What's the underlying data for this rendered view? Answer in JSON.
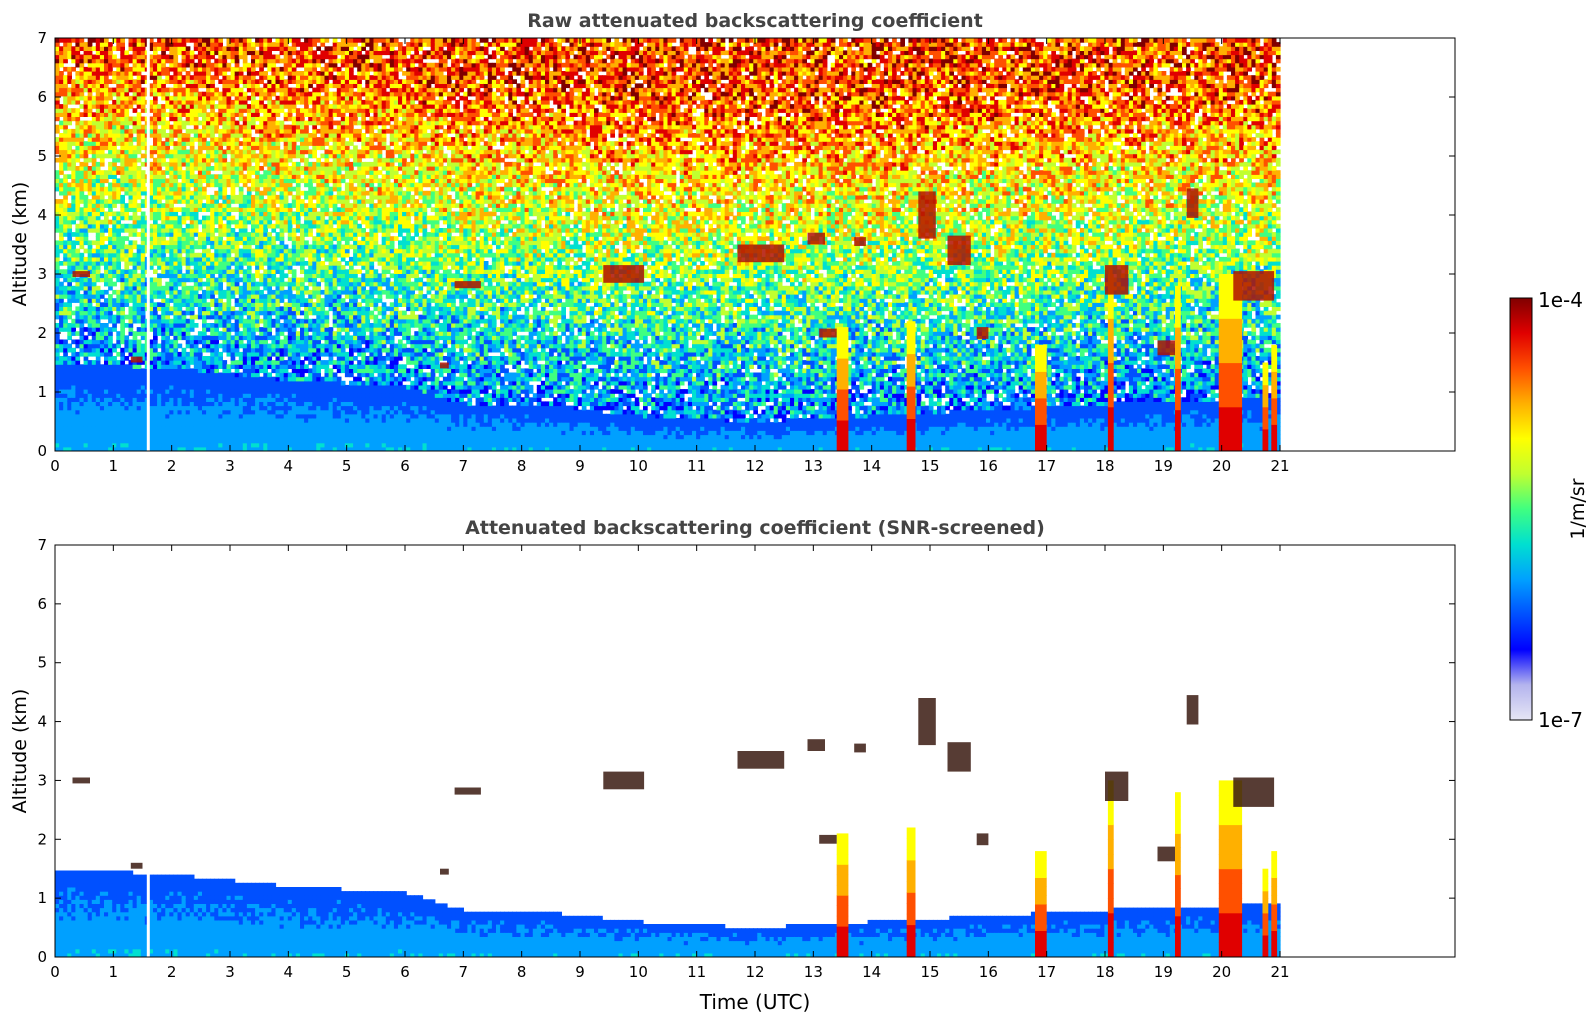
{
  "chart_data": [
    {
      "type": "heatmap",
      "title": "Raw attenuated backscattering coefficient",
      "xlabel": "",
      "ylabel": "Altitude (km)",
      "xlim": [
        0,
        24
      ],
      "ylim": [
        0,
        7
      ],
      "x_ticks": [
        "0",
        "1",
        "2",
        "3",
        "4",
        "5",
        "6",
        "7",
        "8",
        "9",
        "10",
        "11",
        "12",
        "13",
        "14",
        "15",
        "16",
        "17",
        "18",
        "19",
        "20",
        "21"
      ],
      "y_ticks": [
        "0",
        "1",
        "2",
        "3",
        "4",
        "5",
        "6",
        "7"
      ],
      "data_end_time": 21,
      "gap_time": 1.6,
      "screened": false,
      "grid": false,
      "boundary_layer_top_km": [
        [
          0,
          1.5
        ],
        [
          2,
          1.4
        ],
        [
          4,
          1.2
        ],
        [
          6,
          1.1
        ],
        [
          7,
          0.8
        ],
        [
          8,
          0.8
        ],
        [
          10,
          0.6
        ],
        [
          12,
          0.5
        ],
        [
          14,
          0.6
        ],
        [
          16,
          0.7
        ],
        [
          18,
          0.8
        ],
        [
          21,
          0.9
        ]
      ],
      "precipitation_shafts": [
        {
          "t0": 13.4,
          "t1": 13.6,
          "top_km": 2.1
        },
        {
          "t0": 14.6,
          "t1": 14.75,
          "top_km": 2.2
        },
        {
          "t0": 16.8,
          "t1": 17.0,
          "top_km": 1.8
        },
        {
          "t0": 18.05,
          "t1": 18.15,
          "top_km": 3.0
        },
        {
          "t0": 19.2,
          "t1": 19.3,
          "top_km": 2.8
        },
        {
          "t0": 19.95,
          "t1": 20.35,
          "top_km": 3.0
        },
        {
          "t0": 20.7,
          "t1": 20.8,
          "top_km": 1.5
        },
        {
          "t0": 20.85,
          "t1": 20.95,
          "top_km": 1.8
        }
      ],
      "cloud_features": [
        {
          "t0": 0.3,
          "t1": 0.6,
          "alt_km": 3.0,
          "depth_km": 0.1
        },
        {
          "t0": 1.3,
          "t1": 1.5,
          "alt_km": 1.55,
          "depth_km": 0.1
        },
        {
          "t0": 6.6,
          "t1": 6.75,
          "alt_km": 1.45,
          "depth_km": 0.1
        },
        {
          "t0": 6.85,
          "t1": 7.3,
          "alt_km": 2.82,
          "depth_km": 0.12
        },
        {
          "t0": 9.4,
          "t1": 10.1,
          "alt_km": 3.0,
          "depth_km": 0.3
        },
        {
          "t0": 11.7,
          "t1": 12.5,
          "alt_km": 3.35,
          "depth_km": 0.3
        },
        {
          "t0": 12.9,
          "t1": 13.2,
          "alt_km": 3.6,
          "depth_km": 0.2
        },
        {
          "t0": 13.1,
          "t1": 13.4,
          "alt_km": 2.0,
          "depth_km": 0.15
        },
        {
          "t0": 13.7,
          "t1": 13.9,
          "alt_km": 3.55,
          "depth_km": 0.15
        },
        {
          "t0": 14.8,
          "t1": 15.1,
          "alt_km": 4.0,
          "depth_km": 0.8
        },
        {
          "t0": 15.3,
          "t1": 15.7,
          "alt_km": 3.4,
          "depth_km": 0.5
        },
        {
          "t0": 15.8,
          "t1": 16.0,
          "alt_km": 2.0,
          "depth_km": 0.2
        },
        {
          "t0": 18.0,
          "t1": 18.4,
          "alt_km": 2.9,
          "depth_km": 0.5
        },
        {
          "t0": 18.9,
          "t1": 19.2,
          "alt_km": 1.75,
          "depth_km": 0.25
        },
        {
          "t0": 19.4,
          "t1": 19.6,
          "alt_km": 4.2,
          "depth_km": 0.5
        },
        {
          "t0": 20.2,
          "t1": 20.9,
          "alt_km": 2.8,
          "depth_km": 0.5
        }
      ]
    },
    {
      "type": "heatmap",
      "title": "Attenuated backscattering coefficient (SNR-screened)",
      "xlabel": "Time (UTC)",
      "ylabel": "Altitude (km)",
      "xlim": [
        0,
        24
      ],
      "ylim": [
        0,
        7
      ],
      "x_ticks": [
        "0",
        "1",
        "2",
        "3",
        "4",
        "5",
        "6",
        "7",
        "8",
        "9",
        "10",
        "11",
        "12",
        "13",
        "14",
        "15",
        "16",
        "17",
        "18",
        "19",
        "20",
        "21"
      ],
      "y_ticks": [
        "0",
        "1",
        "2",
        "3",
        "4",
        "5",
        "6",
        "7"
      ],
      "data_end_time": 21,
      "gap_time": 1.6,
      "screened": true,
      "grid": false
    }
  ],
  "colorbar": {
    "max_label": "1e-4",
    "min_label": "1e-7",
    "unit_label": "1/m/sr",
    "colors": [
      "#e6e6f5",
      "#b4b4ee",
      "#0000ff",
      "#0050ff",
      "#00a0ff",
      "#00e0d0",
      "#40ff80",
      "#c0ff30",
      "#ffff00",
      "#ffb000",
      "#ff5000",
      "#e00000",
      "#800000"
    ]
  }
}
